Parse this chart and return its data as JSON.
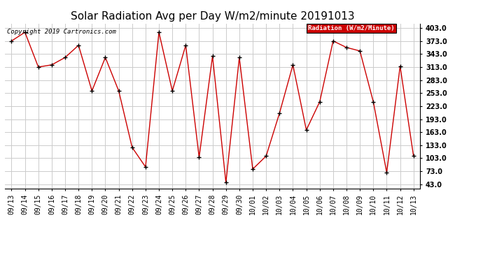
{
  "title": "Solar Radiation Avg per Day W/m2/minute 20191013",
  "copyright_text": "Copyright 2019 Cartronics.com",
  "legend_label": "Radiation (W/m2/Minute)",
  "legend_bg": "#cc0000",
  "legend_text_color": "#ffffff",
  "line_color": "#cc0000",
  "marker_color": "#000000",
  "background_color": "#ffffff",
  "grid_color": "#cccccc",
  "dates": [
    "09/13",
    "09/14",
    "09/15",
    "09/16",
    "09/17",
    "09/18",
    "09/19",
    "09/20",
    "09/21",
    "09/22",
    "09/23",
    "09/24",
    "09/25",
    "09/26",
    "09/27",
    "09/28",
    "09/29",
    "09/30",
    "10/01",
    "10/02",
    "10/03",
    "10/04",
    "10/05",
    "10/06",
    "10/07",
    "10/08",
    "10/09",
    "10/10",
    "10/11",
    "10/12",
    "10/13"
  ],
  "values": [
    373,
    393,
    313,
    318,
    335,
    363,
    258,
    335,
    258,
    128,
    83,
    393,
    258,
    363,
    105,
    338,
    47,
    335,
    78,
    108,
    207,
    318,
    168,
    233,
    373,
    358,
    350,
    233,
    70,
    315,
    108
  ],
  "yticks": [
    43.0,
    73.0,
    103.0,
    133.0,
    163.0,
    193.0,
    223.0,
    253.0,
    283.0,
    313.0,
    343.0,
    373.0,
    403.0
  ],
  "ylim": [
    33,
    413
  ],
  "title_fontsize": 11,
  "axis_fontsize": 7,
  "copyright_fontsize": 6.5
}
